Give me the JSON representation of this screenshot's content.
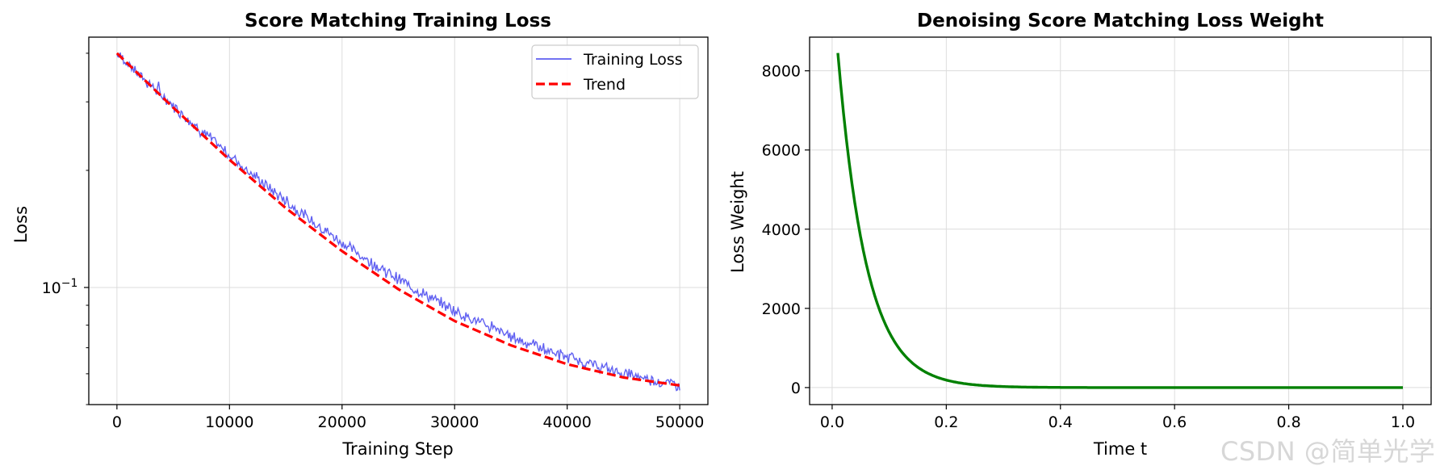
{
  "watermark": "CSDN @简单光学",
  "colors": {
    "loss_line": "#4444ee",
    "trend_line": "#ff0000",
    "weight_line": "#008000",
    "grid": "#dcdcdc"
  },
  "chart_data": [
    {
      "type": "line",
      "title": "Score Matching Training Loss",
      "xlabel": "Training Step",
      "ylabel": "Loss",
      "yscale": "log",
      "xlim": [
        -2500,
        52500
      ],
      "ylim": [
        0.05,
        0.44
      ],
      "grid": true,
      "xticks": [
        0,
        10000,
        20000,
        30000,
        40000,
        50000
      ],
      "xtick_labels": [
        "0",
        "10000",
        "20000",
        "30000",
        "40000",
        "50000"
      ],
      "yticks_major": [
        0.1
      ],
      "ytick_labels_major": {
        "base": "10",
        "exponent": "−1"
      },
      "legend": {
        "location": "top-right",
        "entries": [
          "Training Loss",
          "Trend"
        ]
      },
      "series": [
        {
          "name": "Training Loss",
          "style": "solid-thin",
          "x_start": 0,
          "x_end": 50000,
          "y_start": 0.4,
          "y_end": 0.056,
          "curve": "exp-decay-to-floor",
          "floor": 0.0462,
          "noise": "small"
        },
        {
          "name": "Trend",
          "style": "dashed",
          "x": [
            0,
            5000,
            10000,
            15000,
            20000,
            25000,
            30000,
            35000,
            40000,
            45000,
            50000
          ],
          "y": [
            0.4,
            0.29,
            0.213,
            0.16,
            0.124,
            0.099,
            0.082,
            0.071,
            0.0635,
            0.0587,
            0.056
          ]
        }
      ]
    },
    {
      "type": "line",
      "title": "Denoising Score Matching Loss Weight",
      "xlabel": "Time t",
      "ylabel": "Loss Weight",
      "xlim": [
        -0.0395,
        1.0495
      ],
      "ylim": [
        -430,
        8850
      ],
      "grid": true,
      "xticks": [
        0.0,
        0.2,
        0.4,
        0.6,
        0.8,
        1.0
      ],
      "xtick_labels": [
        "0.0",
        "0.2",
        "0.4",
        "0.6",
        "0.8",
        "1.0"
      ],
      "yticks": [
        0,
        2000,
        4000,
        6000,
        8000
      ],
      "ytick_labels": [
        "0",
        "2000",
        "4000",
        "6000",
        "8000"
      ],
      "series": [
        {
          "name": "Loss Weight",
          "x_start": 0.01,
          "x_end": 1.0,
          "y_start": 8450,
          "decay_rate": 20,
          "form": "A*exp(-k*t)"
        }
      ]
    }
  ]
}
